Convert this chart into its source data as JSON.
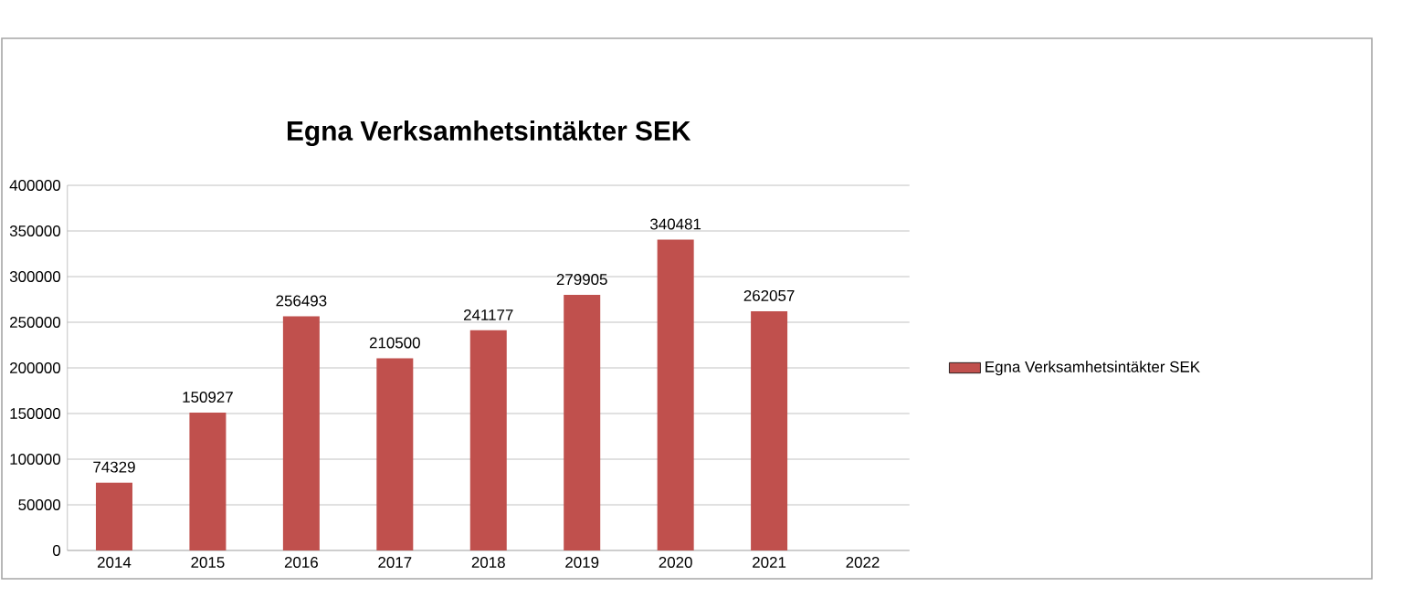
{
  "chart_data": {
    "type": "bar",
    "title": "Egna Verksamhetsintäkter SEK",
    "categories": [
      "2014",
      "2015",
      "2016",
      "2017",
      "2018",
      "2019",
      "2020",
      "2021",
      "2022"
    ],
    "series": [
      {
        "name": "Egna Verksamhetsintäkter SEK",
        "color": "#c0504d",
        "values": [
          74329,
          150927,
          256493,
          210500,
          241177,
          279905,
          340481,
          262057,
          null
        ]
      }
    ],
    "ylim": [
      0,
      400000
    ],
    "yticks": [
      0,
      50000,
      100000,
      150000,
      200000,
      250000,
      300000,
      350000,
      400000
    ],
    "grid": "y",
    "legend": "right",
    "data_labels": true
  }
}
